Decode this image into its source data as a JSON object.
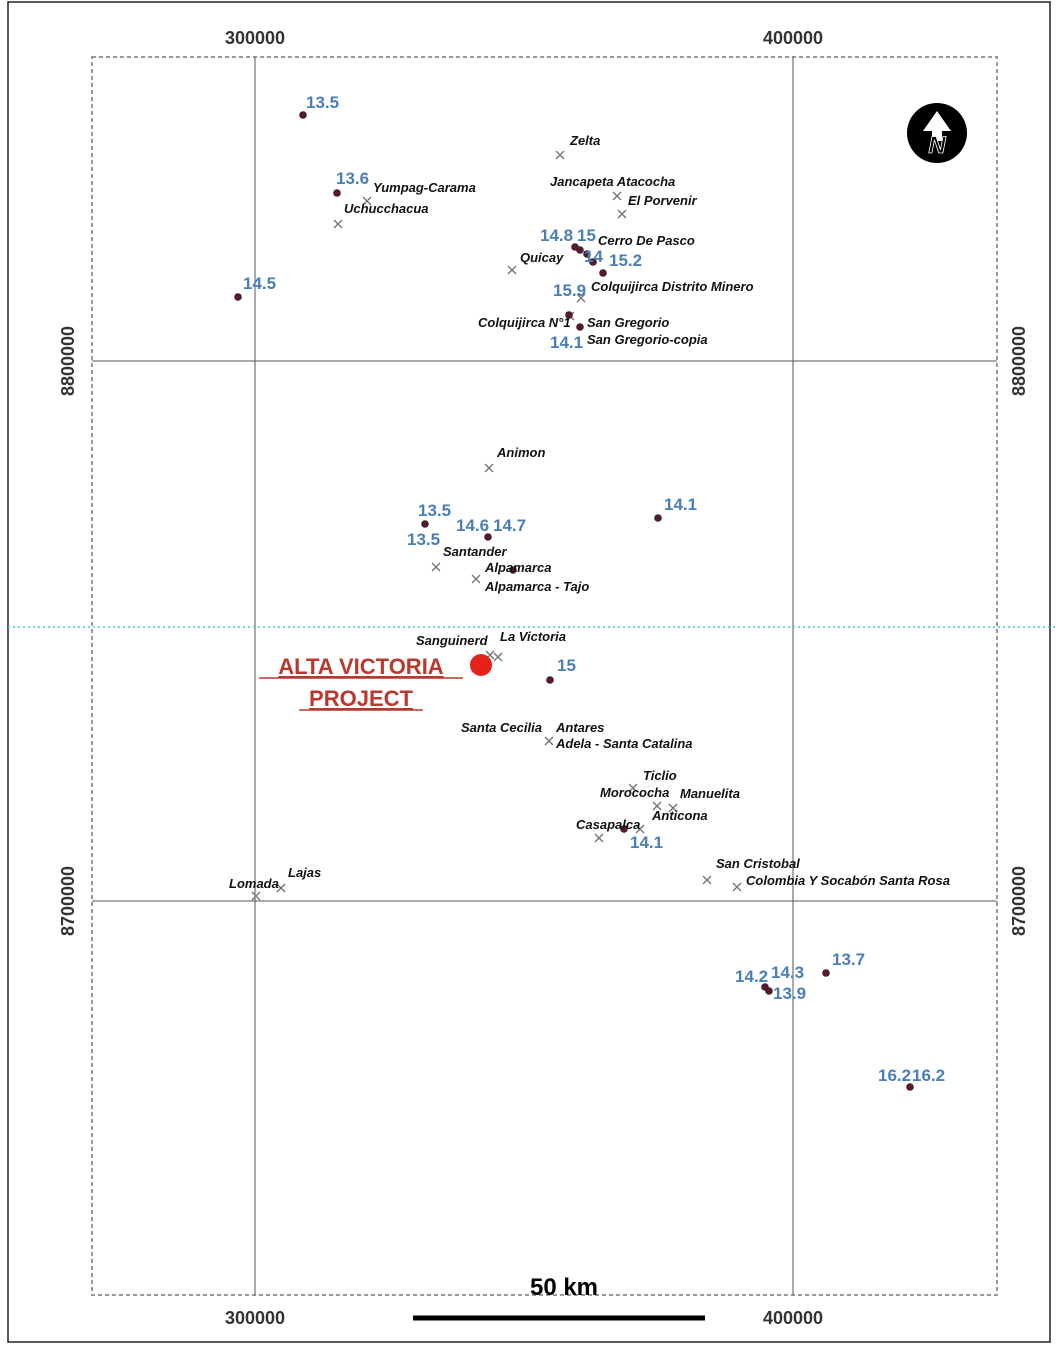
{
  "colors": {
    "project_marker": "#e3221b",
    "project_label": "#b8392e",
    "value_label": "#4a7fb5",
    "deposit_dot": "#5a1a2c",
    "mine_symbol": "#777777",
    "grid": "#555555",
    "latitude_line": "#3cc8d8"
  },
  "north_arrow": {
    "icon": "north-arrow-icon",
    "letter": "N"
  },
  "scale_bar": {
    "label": "50 km"
  },
  "axes": {
    "easting_ticks": [
      "300000",
      "400000"
    ],
    "northing_ticks": [
      "8800000",
      "8700000"
    ]
  },
  "project": {
    "line1": "ALTA VICTORIA",
    "line2": "PROJECT"
  },
  "mines": [
    "Zelta",
    "Jancapeta Atacocha",
    "El Porvenir",
    "Yumpag-Carama",
    "Uchucchacua",
    "Cerro De Pasco",
    "Quicay",
    "Colquijirca Distrito Minero",
    "Colquijirca N°1",
    "San Gregorio",
    "San Gregorio-copia",
    "Animon",
    "Santander",
    "Alpamarca",
    "Alpamarca - Tajo",
    "Sanguinerd",
    "La Victoria",
    "Santa Cecilia",
    "Antares",
    "Adela - Santa Catalina",
    "Ticlio",
    "Morococha",
    "Manuelita",
    "Anticona",
    "Casapalca",
    "San Cristobal",
    "Colombia Y Socabón Santa Rosa",
    "Lajas",
    "Lomada"
  ],
  "values": [
    "13.5",
    "13.6",
    "14.5",
    "14.8",
    "15",
    "14",
    "15.2",
    "15.9",
    "14.1",
    "13.5",
    "13.5",
    "14.6",
    "14.7",
    "14.1",
    "15",
    "14.1",
    "14.2",
    "14.3",
    "13.9",
    "13.7",
    "16.2",
    "16.2"
  ]
}
